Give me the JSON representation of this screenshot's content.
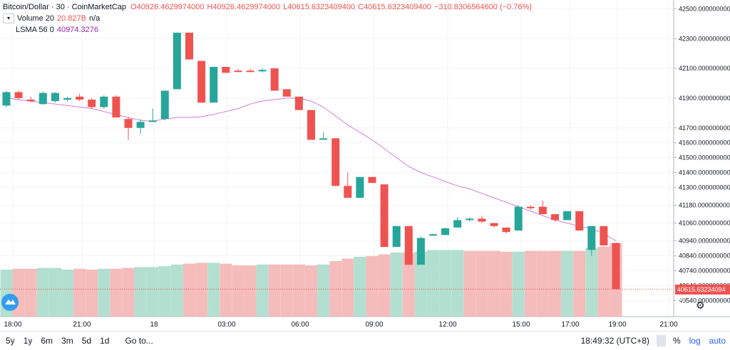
{
  "legend": {
    "symbol": "Bitcoin/Dollar · 30 · CoinMarketCap",
    "open": "O40926.4629974000",
    "high": "H40926.4629974000",
    "low": "L40615.6323409400",
    "close": "C40615.6323409400",
    "change": "−310.8306564600 (−0.76%)",
    "volume_label": "Volume 20",
    "volume_value": "20.827B",
    "volume_na": "n/a",
    "lsma_label": "LSMA 56 0",
    "lsma_value": "40974.3276"
  },
  "colors": {
    "up": "#26a69a",
    "down": "#ef5350",
    "up_volume": "#b2dfcf",
    "down_volume": "#f5bcbc",
    "lsma": "#d57ad9"
  },
  "last_price_label": "40615.63234094​00",
  "bottom_bar": {
    "ranges": [
      "5y",
      "1y",
      "6m",
      "3m",
      "5d",
      "1d"
    ],
    "goto": "Go to...",
    "time": "18:49:32 (UTC+8)",
    "percent": "%",
    "log": "log",
    "auto": "auto"
  },
  "chart_data": {
    "type": "candlestick",
    "title": "Bitcoin/Dollar · 30 · CoinMarketCap",
    "interval": "30",
    "x_ticks": [
      "18:00",
      "21:00",
      "18",
      "03:00",
      "06:00",
      "09:00",
      "12:00",
      "15:00",
      "17:00",
      "19:00",
      "21:00"
    ],
    "y_ticks": [
      42500,
      42300,
      42100,
      41900,
      41700,
      41600,
      41500,
      41400,
      41300,
      41180,
      41060,
      40940,
      40840,
      40740,
      40640,
      40540
    ],
    "y_tick_labels": [
      "42500.0000000000",
      "42300.0000000000",
      "42100.0000000000",
      "41900.0000000000",
      "41700.0000000000",
      "41600.0000000000",
      "41500.0000000000",
      "41400.0000000000",
      "41300.0000000000",
      "41180.0000000000",
      "41060.0000000000",
      "40940.0000000000",
      "40840.0000000000",
      "40740.0000000000",
      "40640.0000000000",
      "40540.0000000000"
    ],
    "candles": [
      {
        "o": 41850,
        "h": 41950,
        "l": 41840,
        "c": 41940
      },
      {
        "o": 41940,
        "h": 41950,
        "l": 41890,
        "c": 41900
      },
      {
        "o": 41890,
        "h": 41910,
        "l": 41870,
        "c": 41880
      },
      {
        "o": 41860,
        "h": 41945,
        "l": 41855,
        "c": 41935
      },
      {
        "o": 41880,
        "h": 41940,
        "l": 41870,
        "c": 41935
      },
      {
        "o": 41890,
        "h": 41910,
        "l": 41880,
        "c": 41900
      },
      {
        "o": 41910,
        "h": 41930,
        "l": 41880,
        "c": 41890
      },
      {
        "o": 41890,
        "h": 41900,
        "l": 41830,
        "c": 41840
      },
      {
        "o": 41840,
        "h": 41920,
        "l": 41830,
        "c": 41910
      },
      {
        "o": 41910,
        "h": 41920,
        "l": 41770,
        "c": 41770
      },
      {
        "o": 41760,
        "h": 41770,
        "l": 41620,
        "c": 41700
      },
      {
        "o": 41700,
        "h": 41760,
        "l": 41660,
        "c": 41740
      },
      {
        "o": 41740,
        "h": 41830,
        "l": 41740,
        "c": 41750
      },
      {
        "o": 41760,
        "h": 41950,
        "l": 41750,
        "c": 41950
      },
      {
        "o": 41960,
        "h": 42340,
        "l": 41960,
        "c": 42340
      },
      {
        "o": 42340,
        "h": 42340,
        "l": 42160,
        "c": 42160
      },
      {
        "o": 42150,
        "h": 42150,
        "l": 41870,
        "c": 41870
      },
      {
        "o": 41870,
        "h": 42110,
        "l": 41870,
        "c": 42110
      },
      {
        "o": 42110,
        "h": 42110,
        "l": 42070,
        "c": 42070
      },
      {
        "o": 42085,
        "h": 42095,
        "l": 42075,
        "c": 42080
      },
      {
        "o": 42085,
        "h": 42095,
        "l": 42075,
        "c": 42080
      },
      {
        "o": 42080,
        "h": 42100,
        "l": 42070,
        "c": 42090
      },
      {
        "o": 42100,
        "h": 42100,
        "l": 41950,
        "c": 41950
      },
      {
        "o": 41960,
        "h": 41960,
        "l": 41910,
        "c": 41910
      },
      {
        "o": 41910,
        "h": 41910,
        "l": 41820,
        "c": 41820
      },
      {
        "o": 41820,
        "h": 41820,
        "l": 41620,
        "c": 41620
      },
      {
        "o": 41620,
        "h": 41670,
        "l": 41620,
        "c": 41630
      },
      {
        "o": 41630,
        "h": 41630,
        "l": 41310,
        "c": 41310
      },
      {
        "o": 41310,
        "h": 41400,
        "l": 41230,
        "c": 41230
      },
      {
        "o": 41230,
        "h": 41370,
        "l": 41230,
        "c": 41370
      },
      {
        "o": 41370,
        "h": 41370,
        "l": 41330,
        "c": 41330
      },
      {
        "o": 41320,
        "h": 41320,
        "l": 40900,
        "c": 40900
      },
      {
        "o": 40900,
        "h": 41040,
        "l": 40900,
        "c": 41040
      },
      {
        "o": 41040,
        "h": 41040,
        "l": 40780,
        "c": 40780
      },
      {
        "o": 40780,
        "h": 40970,
        "l": 40780,
        "c": 40960
      },
      {
        "o": 40980,
        "h": 40990,
        "l": 40975,
        "c": 40985
      },
      {
        "o": 40980,
        "h": 41030,
        "l": 40980,
        "c": 41025
      },
      {
        "o": 41030,
        "h": 41100,
        "l": 41030,
        "c": 41080
      },
      {
        "o": 41080,
        "h": 41100,
        "l": 41070,
        "c": 41090
      },
      {
        "o": 41090,
        "h": 41110,
        "l": 41060,
        "c": 41070
      },
      {
        "o": 41060,
        "h": 41060,
        "l": 41030,
        "c": 41040
      },
      {
        "o": 41030,
        "h": 41030,
        "l": 40990,
        "c": 41000
      },
      {
        "o": 41010,
        "h": 41180,
        "l": 41010,
        "c": 41170
      },
      {
        "o": 41170,
        "h": 41180,
        "l": 41150,
        "c": 41160
      },
      {
        "o": 41170,
        "h": 41210,
        "l": 41120,
        "c": 41120
      },
      {
        "o": 41120,
        "h": 41120,
        "l": 41070,
        "c": 41080
      },
      {
        "o": 41080,
        "h": 41140,
        "l": 41080,
        "c": 41140
      },
      {
        "o": 41140,
        "h": 41140,
        "l": 41010,
        "c": 41010
      },
      {
        "o": 40880,
        "h": 41030,
        "l": 40840,
        "c": 41040
      },
      {
        "o": 41040,
        "h": 41040,
        "l": 40910,
        "c": 40910
      },
      {
        "o": 40926.46,
        "h": 40926.46,
        "l": 40615.63,
        "c": 40615.63
      }
    ],
    "volume": [
      {
        "v": 0.55,
        "up": true
      },
      {
        "v": 0.56,
        "up": false
      },
      {
        "v": 0.56,
        "up": false
      },
      {
        "v": 0.57,
        "up": true
      },
      {
        "v": 0.57,
        "up": true
      },
      {
        "v": 0.55,
        "up": true
      },
      {
        "v": 0.56,
        "up": false
      },
      {
        "v": 0.55,
        "up": false
      },
      {
        "v": 0.56,
        "up": true
      },
      {
        "v": 0.56,
        "up": false
      },
      {
        "v": 0.57,
        "up": false
      },
      {
        "v": 0.58,
        "up": true
      },
      {
        "v": 0.58,
        "up": true
      },
      {
        "v": 0.59,
        "up": true
      },
      {
        "v": 0.61,
        "up": true
      },
      {
        "v": 0.62,
        "up": false
      },
      {
        "v": 0.63,
        "up": false
      },
      {
        "v": 0.63,
        "up": true
      },
      {
        "v": 0.62,
        "up": false
      },
      {
        "v": 0.6,
        "up": false
      },
      {
        "v": 0.6,
        "up": false
      },
      {
        "v": 0.61,
        "up": true
      },
      {
        "v": 0.61,
        "up": false
      },
      {
        "v": 0.61,
        "up": false
      },
      {
        "v": 0.61,
        "up": false
      },
      {
        "v": 0.6,
        "up": false
      },
      {
        "v": 0.61,
        "up": true
      },
      {
        "v": 0.65,
        "up": false
      },
      {
        "v": 0.68,
        "up": false
      },
      {
        "v": 0.7,
        "up": true
      },
      {
        "v": 0.71,
        "up": false
      },
      {
        "v": 0.73,
        "up": false
      },
      {
        "v": 0.75,
        "up": true
      },
      {
        "v": 0.75,
        "up": false
      },
      {
        "v": 0.76,
        "up": true
      },
      {
        "v": 0.78,
        "up": true
      },
      {
        "v": 0.78,
        "up": true
      },
      {
        "v": 0.78,
        "up": true
      },
      {
        "v": 0.77,
        "up": false
      },
      {
        "v": 0.77,
        "up": false
      },
      {
        "v": 0.77,
        "up": false
      },
      {
        "v": 0.76,
        "up": false
      },
      {
        "v": 0.76,
        "up": true
      },
      {
        "v": 0.77,
        "up": false
      },
      {
        "v": 0.77,
        "up": false
      },
      {
        "v": 0.77,
        "up": false
      },
      {
        "v": 0.77,
        "up": true
      },
      {
        "v": 0.77,
        "up": false
      },
      {
        "v": 0.8,
        "up": true
      },
      {
        "v": 0.82,
        "up": false
      },
      {
        "v": 0.86,
        "up": false
      }
    ],
    "lsma": [
      41900,
      41890,
      41880,
      41870,
      41860,
      41850,
      41840,
      41830,
      41810,
      41790,
      41770,
      41750,
      41745,
      41760,
      41770,
      41770,
      41775,
      41790,
      41810,
      41830,
      41860,
      41880,
      41890,
      41900,
      41900,
      41880,
      41840,
      41780,
      41720,
      41670,
      41620,
      41560,
      41500,
      41440,
      41400,
      41370,
      41340,
      41310,
      41290,
      41260,
      41230,
      41200,
      41170,
      41140,
      41110,
      41080,
      41060,
      41040,
      41020,
      40990,
      40940
    ],
    "last_price": 40615.63234094,
    "ylim": [
      40470,
      42550
    ]
  }
}
